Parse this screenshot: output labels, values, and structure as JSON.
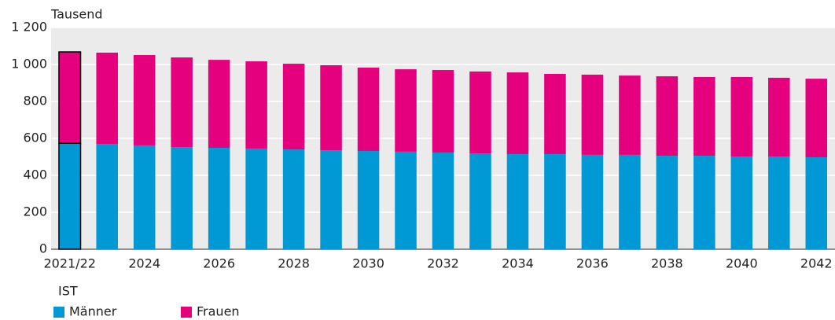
{
  "chart_data": {
    "type": "stacked_bar",
    "y_label": "Tausend",
    "annotation": "IST",
    "categories": [
      "2021/22",
      null,
      "2024",
      null,
      "2026",
      null,
      "2028",
      null,
      "2030",
      null,
      "2032",
      null,
      "2034",
      null,
      "2036",
      null,
      "2038",
      null,
      "2040",
      null,
      "2042"
    ],
    "series": [
      {
        "name": "Männer",
        "color": "#0099d6",
        "values": [
          574,
          570,
          562,
          553,
          549,
          545,
          540,
          536,
          532,
          528,
          523,
          519,
          515,
          515,
          511,
          511,
          506,
          506,
          502,
          502,
          498
        ]
      },
      {
        "name": "Frauen",
        "color": "#e5007d",
        "values": [
          494,
          494,
          489,
          485,
          476,
          472,
          464,
          460,
          451,
          446,
          447,
          443,
          442,
          434,
          434,
          429,
          430,
          426,
          430,
          426,
          425
        ]
      }
    ],
    "ylim": [
      0,
      1200
    ],
    "yticks": [
      0,
      200,
      400,
      600,
      800,
      {
        "value": 1000,
        "label": "1 000"
      },
      {
        "value": 1200,
        "label": "1 200"
      }
    ],
    "grid": true
  }
}
